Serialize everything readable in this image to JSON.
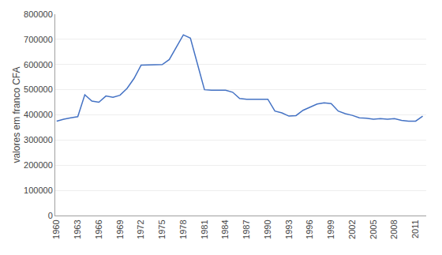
{
  "chart_data": {
    "type": "line",
    "x": [
      1960,
      1961,
      1962,
      1963,
      1964,
      1965,
      1966,
      1967,
      1968,
      1969,
      1970,
      1971,
      1972,
      1973,
      1974,
      1975,
      1976,
      1977,
      1978,
      1979,
      1980,
      1981,
      1982,
      1983,
      1984,
      1985,
      1986,
      1987,
      1988,
      1989,
      1990,
      1991,
      1992,
      1993,
      1994,
      1995,
      1996,
      1997,
      1998,
      1999,
      2000,
      2001,
      2002,
      2003,
      2004,
      2005,
      2006,
      2007,
      2008,
      2009,
      2010,
      2011,
      2012
    ],
    "values": [
      375000,
      383000,
      388000,
      393000,
      480000,
      455000,
      450000,
      475000,
      470000,
      478000,
      505000,
      545000,
      598000,
      598000,
      600000,
      600000,
      620000,
      668000,
      718000,
      705000,
      600000,
      500000,
      498000,
      497000,
      498000,
      490000,
      465000,
      462000,
      462000,
      463000,
      462000,
      415000,
      408000,
      395000,
      397000,
      418000,
      430000,
      443000,
      448000,
      445000,
      415000,
      405000,
      398000,
      388000,
      387000,
      383000,
      385000,
      383000,
      385000,
      378000,
      375000,
      375000,
      395000
    ],
    "color": "#4472c4",
    "ylabel": "valores em franco CFA",
    "xlim": [
      1959.8,
      2012.5
    ],
    "xticks": [
      1960,
      1963,
      1966,
      1969,
      1972,
      1975,
      1978,
      1981,
      1984,
      1987,
      1990,
      1993,
      1996,
      1999,
      2002,
      2005,
      2008,
      2011
    ],
    "ylim": [
      0,
      800000
    ],
    "yticks": [
      0,
      100000,
      200000,
      300000,
      400000,
      500000,
      600000,
      700000,
      800000
    ],
    "grid": true
  }
}
